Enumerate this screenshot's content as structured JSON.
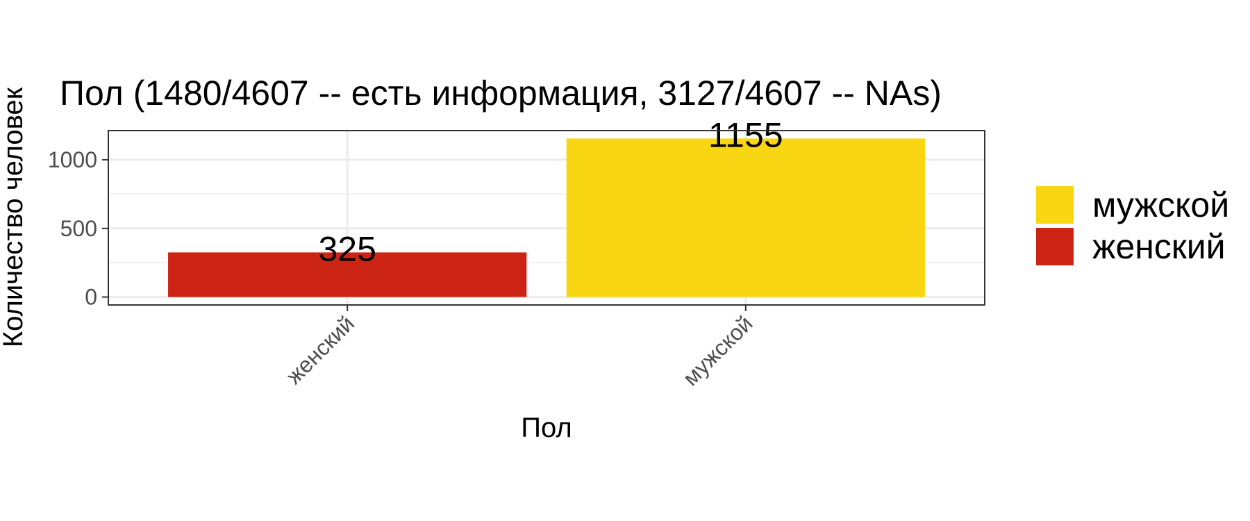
{
  "chart_data": {
    "type": "bar",
    "title": "Пол (1480/4607 -- есть информация, 3127/4607 -- NAs)",
    "xlabel": "Пол",
    "ylabel": "Количество человек",
    "categories": [
      "женский",
      "мужской"
    ],
    "values": [
      325,
      1155
    ],
    "data_labels": [
      "325",
      "1155"
    ],
    "bar_colors": [
      "#CC2414",
      "#F9D613"
    ],
    "ylim": [
      -57.75,
      1212.75
    ],
    "yticks": [
      0,
      500,
      1000
    ],
    "ytick_labels": [
      "0",
      "500",
      "1000"
    ],
    "grid": true,
    "legend": {
      "position": "right",
      "items": [
        {
          "label": "мужской",
          "color": "#F9D613"
        },
        {
          "label": "женский",
          "color": "#CC2414"
        }
      ]
    }
  }
}
